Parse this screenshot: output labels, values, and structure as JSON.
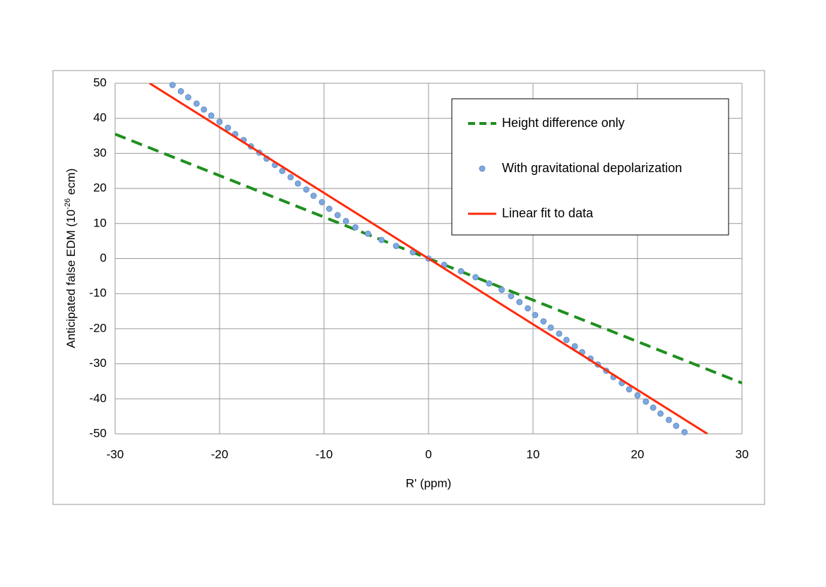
{
  "chart_data": {
    "type": "line",
    "xlabel": "R' (ppm)",
    "ylabel": {
      "text": "Anticipated false EDM (10",
      "sup": "-26",
      "tail": " ecm)"
    },
    "xlim": [
      -30,
      30
    ],
    "xticks": [
      -30,
      -20,
      -10,
      0,
      10,
      20,
      30
    ],
    "ylim": [
      -50,
      50
    ],
    "yticks": [
      -50,
      -40,
      -30,
      -20,
      -10,
      0,
      10,
      20,
      30,
      40,
      50
    ],
    "grid": true,
    "legend": "upper right",
    "series": [
      {
        "name": "Height difference only",
        "color": "#1f8f1f",
        "style": "dashed",
        "x": [
          -30,
          30
        ],
        "values": [
          35.5,
          -35.5
        ]
      },
      {
        "name": "With gravitational depolarization",
        "color": "#7ea9df",
        "style": "markers",
        "x": [
          -24.5,
          -23.7,
          -23.0,
          -22.2,
          -21.5,
          -20.8,
          -20.0,
          -19.2,
          -18.5,
          -17.7,
          -17.0,
          -16.2,
          -15.5,
          -14.7,
          -14.0,
          -13.2,
          -12.5,
          -11.7,
          -11.0,
          -10.2,
          -9.5,
          -8.7,
          -7.9,
          -7.0,
          -5.8,
          -4.5,
          -3.1,
          -1.5,
          0,
          1.5,
          3.1,
          4.5,
          5.8,
          7.0,
          7.9,
          8.7,
          9.5,
          10.2,
          11.0,
          11.7,
          12.5,
          13.2,
          14.0,
          14.7,
          15.5,
          16.2,
          17.0,
          17.7,
          18.5,
          19.2,
          20.0,
          20.8,
          21.5,
          22.2,
          23.0,
          23.7,
          24.5
        ],
        "values": [
          49.5,
          47.7,
          46.0,
          44.2,
          42.5,
          40.8,
          39.0,
          37.3,
          35.5,
          33.8,
          32.0,
          30.2,
          28.5,
          26.7,
          25.0,
          23.2,
          21.4,
          19.7,
          17.9,
          16.1,
          14.2,
          12.4,
          10.7,
          8.9,
          7.1,
          5.3,
          3.6,
          1.8,
          0,
          -1.8,
          -3.6,
          -5.3,
          -7.1,
          -8.9,
          -10.7,
          -12.4,
          -14.2,
          -16.1,
          -17.9,
          -19.7,
          -21.4,
          -23.2,
          -25.0,
          -26.7,
          -28.5,
          -30.2,
          -32.0,
          -33.8,
          -35.5,
          -37.3,
          -39.0,
          -40.8,
          -42.5,
          -44.2,
          -46.0,
          -47.7,
          -49.5
        ]
      },
      {
        "name": "Linear fit to data",
        "color": "#ff2a0a",
        "style": "solid",
        "x": [
          -26.7,
          26.7
        ],
        "values": [
          50,
          -50
        ]
      }
    ]
  }
}
